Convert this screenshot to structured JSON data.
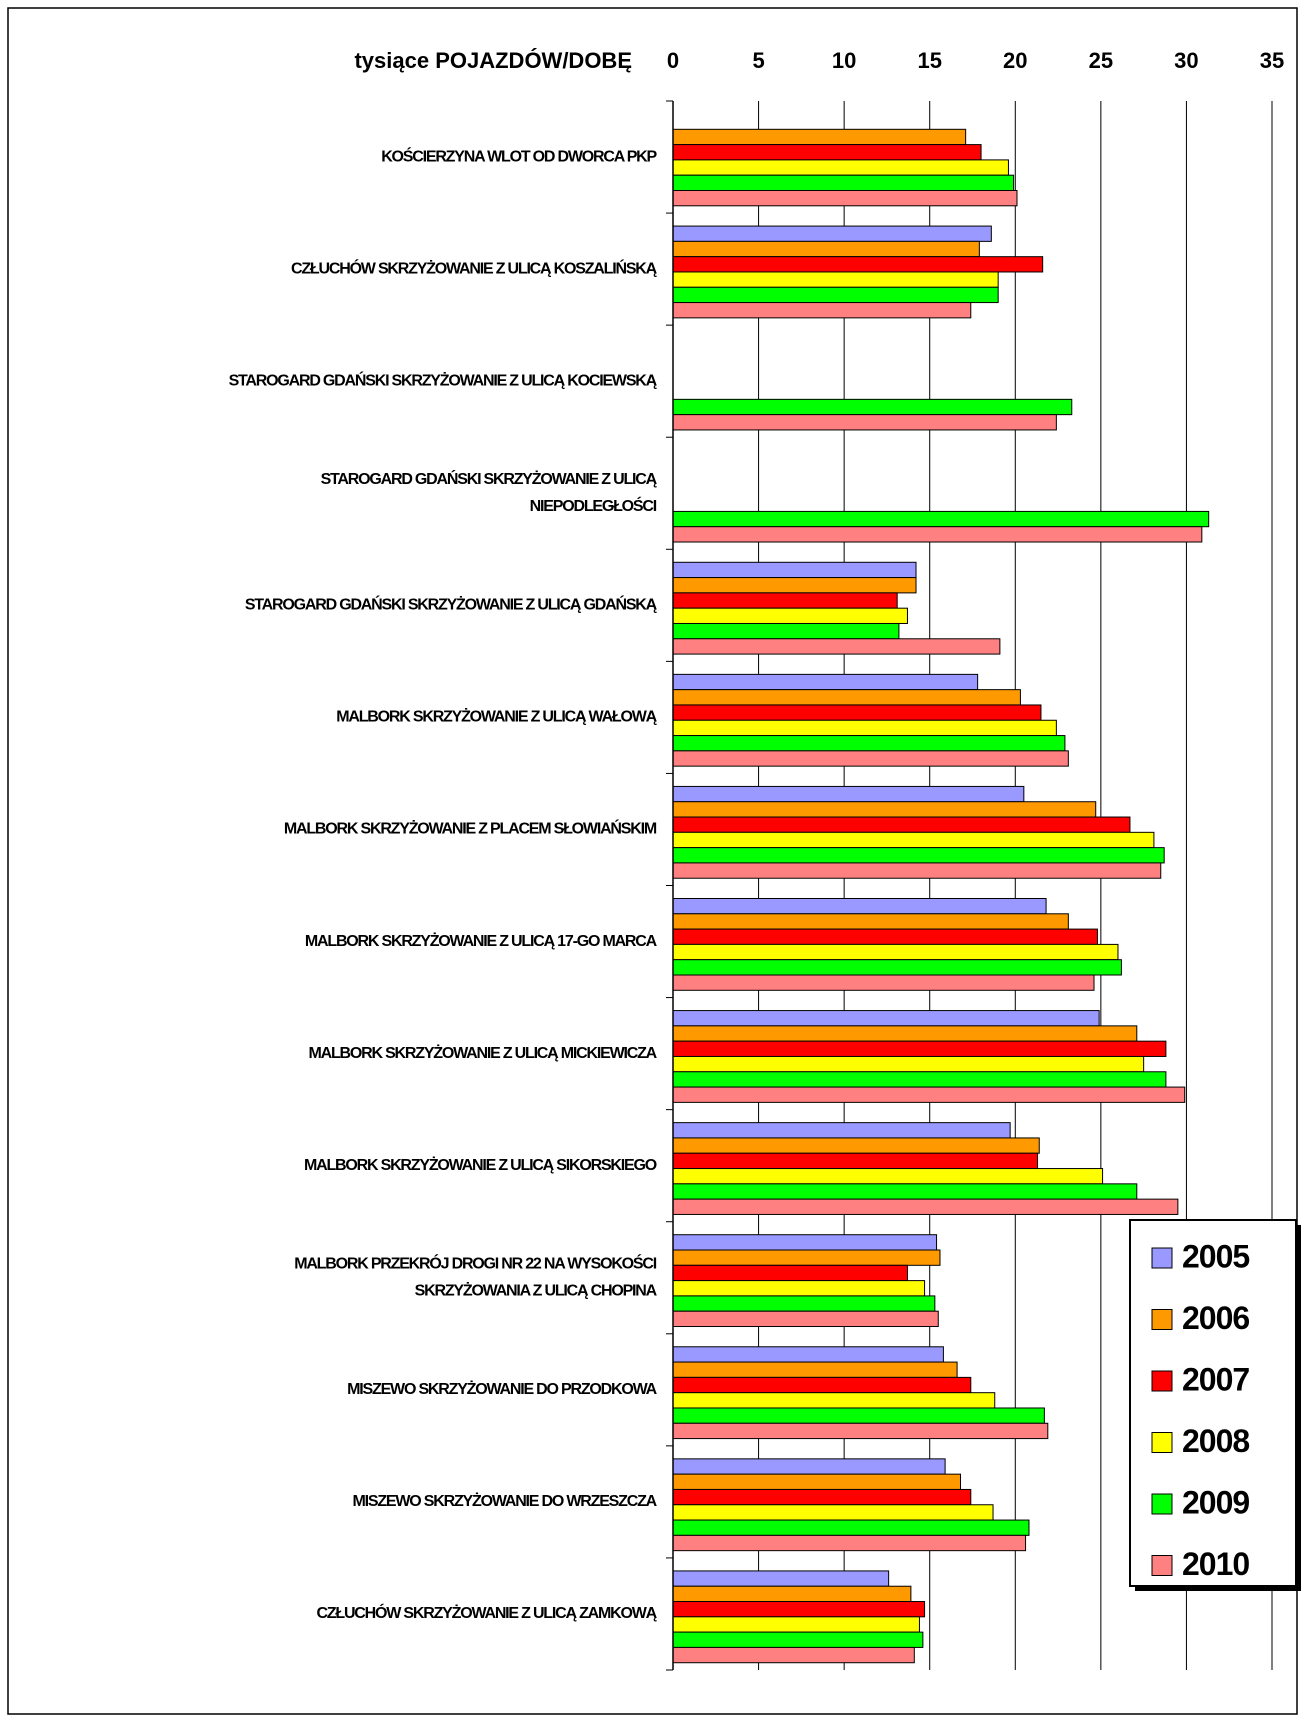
{
  "chart_data": {
    "type": "hbar",
    "x_title": "tysiące POJAZDÓW/DOBĘ",
    "categories": [
      "KOŚCIERZYNA WLOT OD DWORCA PKP",
      "CZŁUCHÓW SKRZYŻOWANIE Z ULICĄ KOSZALIŃSKĄ",
      "STAROGARD GDAŃSKI SKRZYŻOWANIE Z ULICĄ KOCIEWSKĄ",
      "STAROGARD GDAŃSKI SKRZYŻOWANIE Z ULICĄ\nNIEPODLEGŁOŚCI",
      "STAROGARD GDAŃSKI SKRZYŻOWANIE Z ULICĄ GDAŃSKĄ",
      "MALBORK SKRZYŻOWANIE Z ULICĄ WAŁOWĄ",
      "MALBORK SKRZYŻOWANIE Z PLACEM SŁOWIAŃSKIM",
      "MALBORK SKRZYŻOWANIE Z ULICĄ 17-GO MARCA",
      "MALBORK SKRZYŻOWANIE Z ULICĄ MICKIEWICZA",
      "MALBORK SKRZYŻOWANIE Z ULICĄ SIKORSKIEGO",
      "MALBORK PRZEKRÓJ DROGI NR 22 NA WYSOKOŚCI\nSKRZYŻOWANIA Z ULICĄ CHOPINA",
      "MISZEWO SKRZYŻOWANIE DO PRZODKOWA",
      "MISZEWO SKRZYŻOWANIE DO WRZESZCZA",
      "CZŁUCHÓW SKRZYŻOWANIE Z ULICĄ ZAMKOWĄ"
    ],
    "series": [
      {
        "name": "2005",
        "color": "#9999ff",
        "values": [
          null,
          18.6,
          null,
          null,
          14.2,
          17.8,
          20.5,
          21.8,
          24.9,
          19.7,
          15.4,
          15.8,
          15.9,
          12.6
        ]
      },
      {
        "name": "2006",
        "color": "#ff9900",
        "values": [
          17.1,
          17.9,
          null,
          null,
          14.2,
          20.3,
          24.7,
          23.1,
          27.1,
          21.4,
          15.6,
          16.6,
          16.8,
          13.9
        ]
      },
      {
        "name": "2007",
        "color": "#ff0000",
        "values": [
          18.0,
          21.6,
          null,
          null,
          13.1,
          21.5,
          26.7,
          24.8,
          28.8,
          21.3,
          13.7,
          17.4,
          17.4,
          14.7
        ]
      },
      {
        "name": "2008",
        "color": "#ffff00",
        "values": [
          19.6,
          19.0,
          null,
          null,
          13.7,
          22.4,
          28.1,
          26.0,
          27.5,
          25.1,
          14.7,
          18.8,
          18.7,
          14.4
        ]
      },
      {
        "name": "2009",
        "color": "#00ff00",
        "values": [
          19.9,
          19.0,
          23.3,
          31.3,
          13.2,
          22.9,
          28.7,
          26.2,
          28.8,
          27.1,
          15.3,
          21.7,
          20.8,
          14.6
        ]
      },
      {
        "name": "2010",
        "color": "#ff8080",
        "values": [
          20.1,
          17.4,
          22.4,
          30.9,
          19.1,
          23.1,
          28.5,
          24.6,
          29.9,
          29.5,
          15.5,
          21.9,
          20.6,
          14.1
        ]
      }
    ],
    "xlim": [
      0,
      35
    ],
    "xticks": [
      0,
      5,
      10,
      15,
      20,
      25,
      30,
      35
    ],
    "grid": true,
    "legend": "bottom-right"
  }
}
